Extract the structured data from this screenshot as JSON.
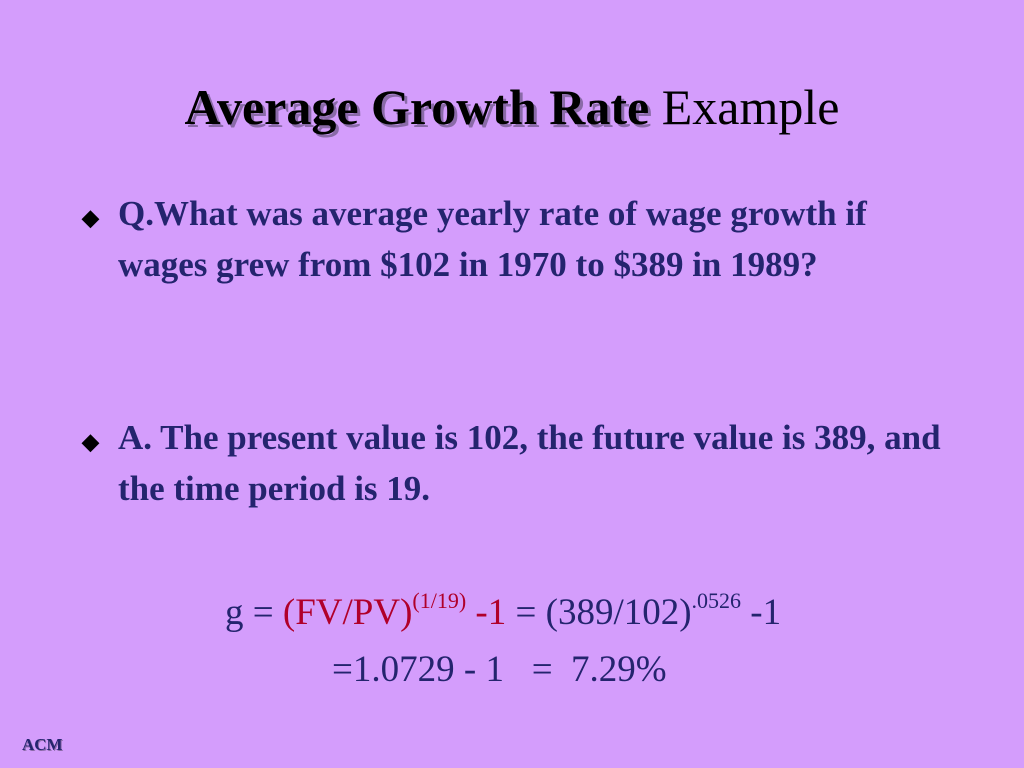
{
  "title": {
    "parts": [
      "Average Growth Rate",
      "Example"
    ]
  },
  "bullets": [
    {
      "text": "Q.What was average yearly rate of wage growth if wages grew from $102 in 1970 to $389 in 1989?"
    },
    {
      "text": "A. The present value is 102, the future value is 389, and the time period is 19."
    }
  ],
  "formula": {
    "line1": [
      "g =",
      "(FV/PV)",
      "(1/19)",
      "-1",
      "= (389/102)",
      ".0526",
      "-1"
    ],
    "line2": "=1.0729 - 1   =  7.29%"
  },
  "footer": {
    "label": "ACM"
  }
}
